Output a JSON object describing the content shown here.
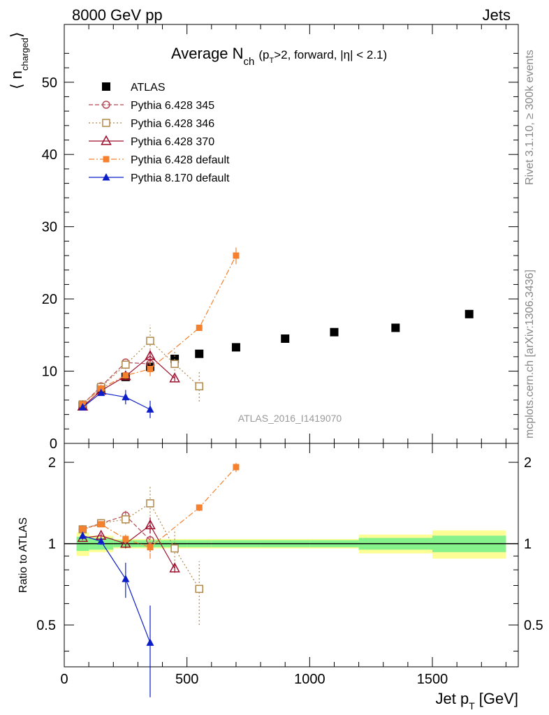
{
  "header": {
    "left": "8000 GeV pp",
    "right": "Jets"
  },
  "side_labels": {
    "rivet": "Rivet 3.1.10, ≥ 300k events",
    "mcplots": "mcplots.cern.ch [arXiv:1306.3436]"
  },
  "chart_data": [
    {
      "type": "scatter",
      "panel": "main",
      "title": "Average N",
      "title_sub": "ch",
      "title_tail": "(p",
      "title_tail_sub": "T",
      "title_tail2": ">2, forward, |η| < 2.1)",
      "ylabel": "⟨ n",
      "ylabel_sub": "charged",
      "ylabel_close": "⟩",
      "watermark": "ATLAS_2016_I1419070",
      "xlim": [
        0,
        1850
      ],
      "ylim": [
        0,
        58
      ],
      "yticks": [
        0,
        10,
        20,
        30,
        40,
        50
      ],
      "legend_position": "top-left",
      "series": [
        {
          "name": "ATLAS",
          "color": "#000000",
          "marker": "filled-square",
          "line": "none",
          "x": [
            75,
            150,
            250,
            350,
            450,
            550,
            700,
            900,
            1100,
            1350,
            1650
          ],
          "y": [
            5.2,
            7.6,
            9.2,
            10.6,
            11.7,
            12.4,
            13.3,
            14.5,
            15.4,
            16.0,
            17.9
          ]
        },
        {
          "name": "Pythia 6.428 345",
          "color": "#b54a55",
          "marker": "open-circle",
          "line": "dashed",
          "x": [
            75,
            150,
            250,
            350
          ],
          "y": [
            5.4,
            7.9,
            11.2,
            11.0
          ],
          "err": [
            0.3,
            0.4,
            0.5,
            0.9
          ]
        },
        {
          "name": "Pythia 6.428 346",
          "color": "#b0884a",
          "marker": "open-square",
          "line": "dotted",
          "x": [
            75,
            150,
            250,
            350,
            450,
            550
          ],
          "y": [
            5.4,
            7.8,
            10.9,
            14.2,
            11.0,
            7.9
          ],
          "err": [
            0.3,
            0.4,
            0.6,
            2.2,
            1.9,
            2.1
          ]
        },
        {
          "name": "Pythia 6.428 370",
          "color": "#9e0f2d",
          "marker": "open-triangle",
          "line": "solid",
          "x": [
            75,
            150,
            250,
            350,
            450
          ],
          "y": [
            5.1,
            7.3,
            9.3,
            12.1,
            9.0
          ],
          "err": [
            0.2,
            0.3,
            0.4,
            0.8,
            0.4
          ]
        },
        {
          "name": "Pythia 6.428 default",
          "color": "#f5802e",
          "marker": "filled-square-small",
          "line": "dashdot",
          "x": [
            75,
            150,
            250,
            350,
            550,
            700
          ],
          "y": [
            5.4,
            7.6,
            9.4,
            10.3,
            16.0,
            26.0
          ],
          "err": [
            0.2,
            0.3,
            0.4,
            1.0,
            0.4,
            1.2
          ]
        },
        {
          "name": "Pythia 8.170 default",
          "color": "#0d1ec9",
          "marker": "filled-triangle",
          "line": "solid",
          "x": [
            75,
            150,
            250,
            350
          ],
          "y": [
            5.0,
            7.0,
            6.4,
            4.7
          ],
          "err": [
            0.2,
            0.3,
            1.0,
            1.2
          ]
        }
      ]
    },
    {
      "type": "scatter",
      "panel": "ratio",
      "ylabel": "Ratio to ATLAS",
      "xlabel": "Jet p",
      "xlabel_sub": "T",
      "xlabel_unit": "[GeV]",
      "xlim": [
        0,
        1850
      ],
      "ylim": [
        0.35,
        2.35
      ],
      "yticks": [
        0.5,
        1,
        2
      ],
      "xticks": [
        0,
        500,
        1000,
        1500
      ],
      "band_edges": [
        50,
        100,
        200,
        300,
        400,
        500,
        600,
        800,
        1000,
        1200,
        1500,
        1800
      ],
      "band_inner": [
        0.06,
        0.05,
        0.03,
        0.03,
        0.03,
        0.03,
        0.03,
        0.03,
        0.03,
        0.05,
        0.07
      ],
      "band_outer": [
        0.1,
        0.07,
        0.04,
        0.04,
        0.04,
        0.04,
        0.04,
        0.04,
        0.04,
        0.08,
        0.12
      ],
      "series": [
        {
          "name": "Pythia 6.428 345",
          "x": [
            75,
            150,
            250,
            350
          ],
          "y": [
            1.13,
            1.19,
            1.27,
            1.03
          ],
          "err": [
            0.03,
            0.03,
            0.06,
            0.1
          ]
        },
        {
          "name": "Pythia 6.428 346",
          "x": [
            75,
            150,
            250,
            350,
            450,
            550
          ],
          "y": [
            1.13,
            1.19,
            1.23,
            1.41,
            0.96,
            0.68
          ],
          "err": [
            0.03,
            0.03,
            0.05,
            0.22,
            0.17,
            0.18
          ]
        },
        {
          "name": "Pythia 6.428 370",
          "x": [
            75,
            150,
            250,
            350,
            450
          ],
          "y": [
            1.05,
            1.07,
            1.0,
            1.17,
            0.81
          ],
          "err": [
            0.02,
            0.02,
            0.04,
            0.08,
            0.03
          ]
        },
        {
          "name": "Pythia 6.428 default",
          "x": [
            75,
            150,
            250,
            350,
            550,
            700
          ],
          "y": [
            1.13,
            1.18,
            1.04,
            0.97,
            1.36,
            1.92
          ],
          "err": [
            0.02,
            0.02,
            0.04,
            0.09,
            0.04,
            0.08
          ]
        },
        {
          "name": "Pythia 8.170 default",
          "x": [
            75,
            150,
            250,
            350
          ],
          "y": [
            1.07,
            1.02,
            0.74,
            0.43
          ],
          "err": [
            0.02,
            0.03,
            0.11,
            0.16
          ]
        }
      ]
    }
  ]
}
